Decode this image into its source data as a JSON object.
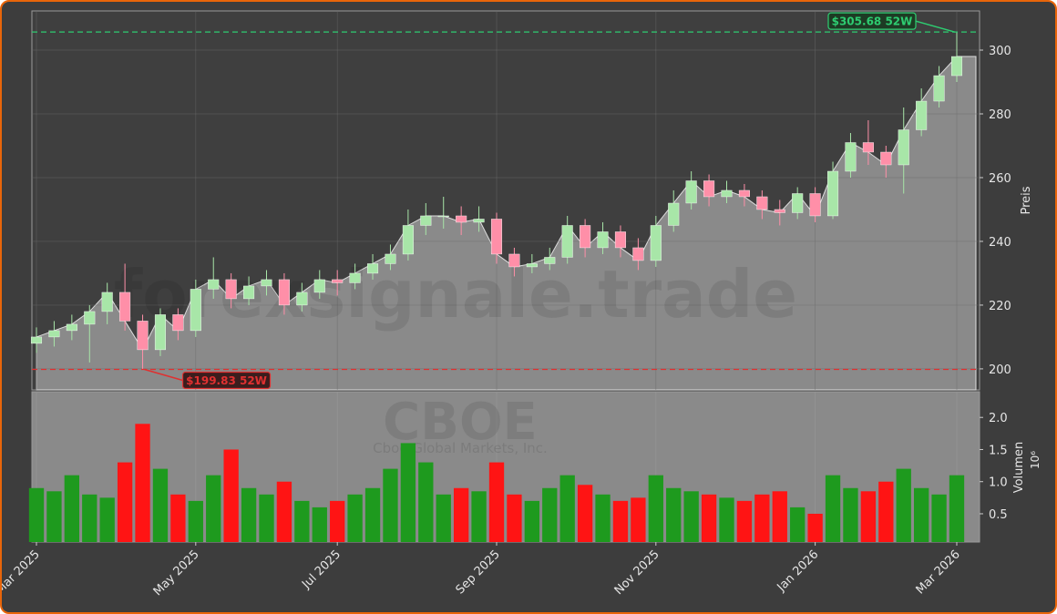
{
  "chart_data": {
    "type": "candlestick",
    "ylabel": "Preis",
    "ylim": [
      193.4,
      312.3
    ],
    "yticks": [
      200,
      220,
      240,
      260,
      280,
      300
    ],
    "categories": [
      "Mar 2025",
      null,
      null,
      null,
      null,
      null,
      null,
      null,
      null,
      "May 2025",
      null,
      null,
      null,
      null,
      null,
      null,
      null,
      "Jul 2025",
      null,
      null,
      null,
      null,
      null,
      null,
      null,
      null,
      "Sep 2025",
      null,
      null,
      null,
      null,
      null,
      null,
      null,
      null,
      "Nov 2025",
      null,
      null,
      null,
      null,
      null,
      null,
      null,
      null,
      "Jan 2026",
      null,
      null,
      null,
      null,
      null,
      null,
      null,
      "Mar 2026"
    ],
    "open": [
      208,
      210,
      212,
      214,
      218,
      224,
      215,
      206,
      217,
      212,
      225,
      228,
      222,
      226,
      228,
      220,
      224,
      228,
      227,
      230,
      233,
      236,
      245,
      248,
      248,
      246,
      247,
      236,
      232,
      233,
      235,
      245,
      238,
      243,
      238,
      234,
      245,
      252,
      259,
      254,
      256,
      254,
      250,
      249,
      255,
      248,
      262,
      271,
      268,
      264,
      275,
      284,
      292
    ],
    "high": [
      213,
      215,
      217,
      220,
      227,
      233,
      217,
      219,
      219,
      228,
      235,
      230,
      229,
      231,
      230,
      227,
      231,
      231,
      233,
      236,
      239,
      250,
      252,
      254,
      251,
      251,
      249,
      238,
      236,
      238,
      248,
      247,
      246,
      245,
      241,
      248,
      256,
      262,
      261,
      259,
      258,
      256,
      253,
      257,
      257,
      265,
      274,
      278,
      270,
      282,
      288,
      295,
      305.68
    ],
    "low": [
      205,
      207,
      209,
      202,
      214,
      212,
      199.83,
      204,
      209,
      210,
      222,
      219,
      220,
      223,
      217,
      218,
      222,
      223,
      225,
      228,
      231,
      234,
      242,
      244,
      242,
      243,
      233,
      229,
      230,
      231,
      233,
      235,
      236,
      235,
      231,
      232,
      243,
      250,
      251,
      252,
      251,
      247,
      245,
      247,
      246,
      247,
      260,
      264,
      260,
      255,
      273,
      282,
      290
    ],
    "close": [
      210,
      212,
      214,
      218,
      224,
      215,
      206,
      217,
      212,
      225,
      228,
      222,
      226,
      228,
      220,
      224,
      228,
      227,
      230,
      233,
      236,
      245,
      248,
      248,
      246,
      247,
      236,
      232,
      233,
      235,
      245,
      238,
      243,
      238,
      234,
      245,
      252,
      259,
      254,
      256,
      254,
      250,
      249,
      255,
      248,
      262,
      271,
      268,
      264,
      275,
      284,
      292,
      298
    ],
    "up_color": "#a8e6a8",
    "down_color": "#ff8fa8",
    "area_color": "#8a8a8a",
    "grid": true,
    "annotations": [
      {
        "value": 305.68,
        "label": "$305.68 52W",
        "color": "#2ecc71"
      },
      {
        "value": 199.83,
        "label": "$199.83 52W",
        "color": "#e03030"
      }
    ],
    "watermark": "forexsignale.trade",
    "symbol": "CBOE",
    "company": "Cboe Global Markets, Inc.",
    "volume": {
      "ylabel": "Volumen",
      "offset_label": "10⁶",
      "ylim": [
        0.06,
        2.4
      ],
      "yticks": [
        0.5,
        {
          "value": 1,
          "label": "1.0"
        },
        1.5,
        {
          "value": 2,
          "label": "2.0"
        }
      ],
      "up_color": "#1e9a1e",
      "down_color": "#ff1414",
      "values": [
        0.9,
        0.85,
        1.1,
        0.8,
        0.75,
        1.3,
        1.9,
        1.2,
        0.8,
        0.7,
        1.1,
        1.5,
        0.9,
        0.8,
        1.0,
        0.7,
        0.6,
        0.7,
        0.8,
        0.9,
        1.2,
        1.6,
        1.3,
        0.8,
        0.9,
        0.85,
        1.3,
        0.8,
        0.7,
        0.9,
        1.1,
        0.95,
        0.8,
        0.7,
        0.75,
        1.1,
        0.9,
        0.85,
        0.8,
        0.75,
        0.7,
        0.8,
        0.85,
        0.6,
        0.5,
        1.1,
        0.9,
        0.85,
        1.0,
        1.2,
        0.9,
        0.8,
        1.1
      ]
    }
  }
}
